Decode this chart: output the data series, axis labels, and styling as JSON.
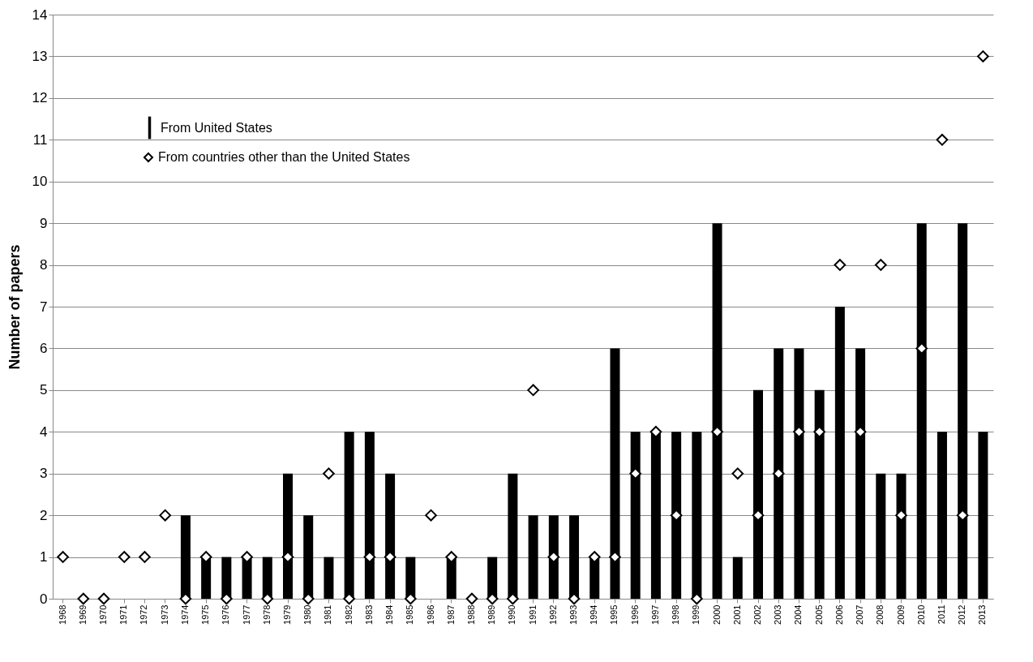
{
  "chart_data": {
    "type": "bar",
    "ylabel": "Number of papers",
    "categories": [
      "1968",
      "1969",
      "1970",
      "1971",
      "1972",
      "1973",
      "1974",
      "1975",
      "1976",
      "1977",
      "1978",
      "1979",
      "1980",
      "1981",
      "1982",
      "1983",
      "1984",
      "1985",
      "1986",
      "1987",
      "1988",
      "1989",
      "1990",
      "1991",
      "1992",
      "1993",
      "1994",
      "1995",
      "1996",
      "1997",
      "1998",
      "1999",
      "2000",
      "2001",
      "2002",
      "2003",
      "2004",
      "2005",
      "2006",
      "2007",
      "2008",
      "2009",
      "2010",
      "2011",
      "2012",
      "2013"
    ],
    "series": [
      {
        "name": "From United States",
        "type": "bar",
        "color": "#000000",
        "values": [
          null,
          null,
          null,
          null,
          null,
          null,
          2,
          1,
          1,
          1,
          1,
          3,
          2,
          1,
          4,
          4,
          3,
          1,
          null,
          1,
          null,
          1,
          3,
          2,
          2,
          2,
          1,
          6,
          4,
          4,
          4,
          4,
          9,
          1,
          5,
          6,
          6,
          5,
          7,
          6,
          3,
          3,
          9,
          4,
          9,
          4
        ]
      },
      {
        "name": "From countries other than the United States",
        "type": "scatter",
        "color": "#000000",
        "values": [
          1,
          0,
          0,
          1,
          1,
          2,
          0,
          1,
          0,
          1,
          0,
          1,
          0,
          3,
          0,
          1,
          1,
          0,
          2,
          1,
          0,
          0,
          0,
          5,
          1,
          0,
          1,
          1,
          3,
          4,
          2,
          0,
          4,
          3,
          2,
          3,
          4,
          4,
          8,
          4,
          8,
          2,
          6,
          11,
          2,
          13
        ]
      }
    ],
    "ylim": [
      0,
      14
    ],
    "yticks": [
      0,
      1,
      2,
      3,
      4,
      5,
      6,
      7,
      8,
      9,
      10,
      11,
      12,
      13,
      14
    ],
    "grid": "y",
    "legend": "top left",
    "marker": "diamond"
  }
}
